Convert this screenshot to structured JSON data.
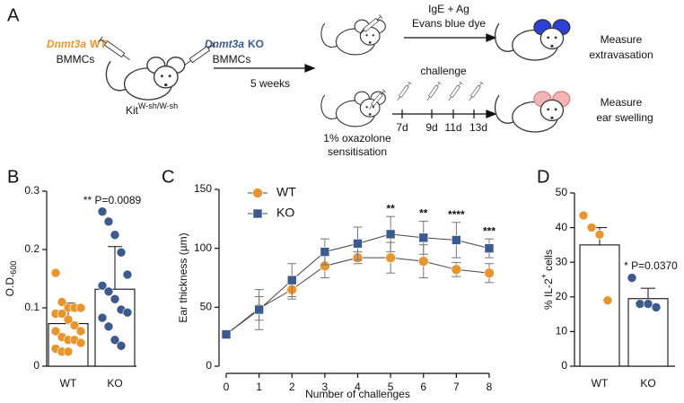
{
  "panels": [
    "A",
    "B",
    "C",
    "D"
  ],
  "schematic": {
    "wt_gene": "Dnmt3a",
    "wt_label": "WT",
    "wt_cells": "BMMCs",
    "ko_gene": "Dnmt3a",
    "ko_label": "KO",
    "ko_cells": "BMMCs",
    "strain": "Kit",
    "strain_sup": "W-sh/W-sh",
    "duration": "5 weeks",
    "top_treatment": [
      "IgE + Ag",
      "Evans blue dye"
    ],
    "top_readout": [
      "Measure",
      "extravasation"
    ],
    "challenge": "challenge",
    "days": [
      "7d",
      "9d",
      "11d",
      "13d"
    ],
    "sensitisation": [
      "1% oxazolone",
      "sensitisation"
    ],
    "bottom_readout": [
      "Measure",
      "ear swelling"
    ]
  },
  "chart_data": [
    {
      "type": "bar",
      "ylabel": "O.D.",
      "ylabel_sub": "600",
      "categories": [
        "WT",
        "KO"
      ],
      "values": [
        0.073,
        0.132
      ],
      "errors": [
        0.035,
        0.073
      ],
      "colors": [
        "#e8952e",
        "#3c5a8c"
      ],
      "points": [
        [
          0.16,
          0.11,
          0.1,
          0.1,
          0.1,
          0.09,
          0.09,
          0.08,
          0.07,
          0.06,
          0.06,
          0.05,
          0.045,
          0.045,
          0.04,
          0.03,
          0.025,
          0.025
        ],
        [
          0.265,
          0.248,
          0.225,
          0.195,
          0.157,
          0.138,
          0.128,
          0.115,
          0.097,
          0.092,
          0.083,
          0.068,
          0.045,
          0.035
        ]
      ],
      "ylim": [
        0,
        0.3
      ],
      "yticks": [
        0,
        0.1,
        0.2,
        0.3
      ],
      "annotation": "** P=0.0089"
    },
    {
      "type": "line",
      "xlabel": "Number of challenges",
      "ylabel": "Ear thickness (µm)",
      "x": [
        0,
        1,
        2,
        3,
        4,
        5,
        6,
        7,
        8
      ],
      "xlim": [
        0,
        8
      ],
      "xticks": [
        0,
        1,
        2,
        3,
        4,
        5,
        6,
        7,
        8
      ],
      "ylim": [
        0,
        150
      ],
      "yticks": [
        0,
        50,
        100,
        150
      ],
      "series": [
        {
          "name": "WT",
          "color": "#e8952e",
          "marker": "circle",
          "values": [
            27,
            49,
            65,
            85,
            92,
            92,
            89,
            82,
            79
          ],
          "errors": [
            0,
            10,
            8,
            10,
            5,
            13,
            14,
            6,
            8
          ]
        },
        {
          "name": "KO",
          "color": "#3c5a8c",
          "marker": "square",
          "values": [
            27,
            48,
            73,
            97,
            104,
            112,
            109,
            107,
            100
          ],
          "errors": [
            0,
            17,
            14,
            11,
            14,
            15,
            14,
            15,
            8
          ]
        }
      ],
      "annotations": [
        {
          "x": 5,
          "text": "**"
        },
        {
          "x": 6,
          "text": "**"
        },
        {
          "x": 7,
          "text": "****"
        },
        {
          "x": 8,
          "text": "***"
        }
      ]
    },
    {
      "type": "bar",
      "ylabel": "% IL-2",
      "ylabel_sup": "+",
      "ylabel_end": "cells",
      "categories": [
        "WT",
        "KO"
      ],
      "values": [
        35,
        19.5
      ],
      "errors": [
        5,
        3
      ],
      "colors": [
        "#e8952e",
        "#3c5a8c"
      ],
      "points": [
        [
          43.5,
          40,
          38,
          19
        ],
        [
          25.5,
          18,
          18,
          17
        ]
      ],
      "ylim": [
        0,
        50
      ],
      "yticks": [
        0,
        10,
        20,
        30,
        40,
        50
      ],
      "annotation": "* P=0.0370"
    }
  ]
}
